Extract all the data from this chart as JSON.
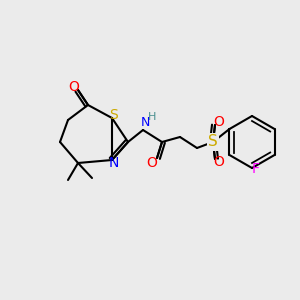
{
  "bg_color": "#ebebeb",
  "bond_color": "#000000",
  "atom_colors": {
    "O": "#ff0000",
    "N": "#0000ff",
    "S_thiol": "#ccaa00",
    "S_sulfonyl": "#ccaa00",
    "F": "#ff00ff",
    "H": "#4a9090",
    "C": "#000000"
  },
  "line_width": 1.5,
  "font_size": 9
}
